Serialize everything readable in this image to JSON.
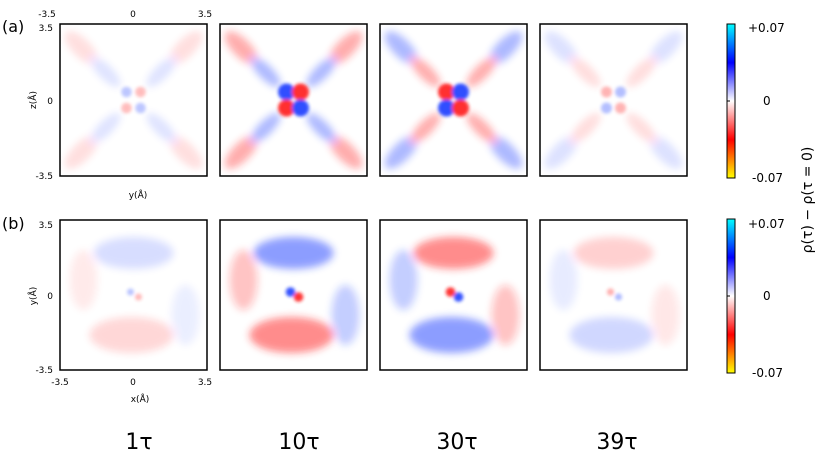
{
  "figure": {
    "panel_a_label": "(a)",
    "panel_b_label": "(b)",
    "row_a": {
      "x_axis_label": "y(Å)",
      "y_axis_label": "z(Å)",
      "top_ticks": [
        "-3.5",
        "0",
        "3.5"
      ],
      "left_ticks": [
        "3.5",
        "0",
        "-3.5"
      ]
    },
    "row_b": {
      "x_axis_label": "x(Å)",
      "y_axis_label": "y(Å)",
      "bottom_ticks": [
        "-3.5",
        "0",
        "3.5"
      ],
      "left_ticks": [
        "3.5",
        "0",
        "-3.5"
      ]
    },
    "colorbar": {
      "max_label": "+0.07",
      "mid_label": "0",
      "min_label": "-0.07",
      "colors": [
        "#ffff00",
        "#ff0000",
        "#ffffff",
        "#0000ff",
        "#00ffff"
      ]
    },
    "colorbar_title": "ρ(τ) − ρ(τ = 0)",
    "time_labels": [
      "1τ",
      "10τ",
      "30τ",
      "39τ"
    ],
    "panel_intensity": [
      0.25,
      0.9,
      0.9,
      0.3
    ]
  }
}
